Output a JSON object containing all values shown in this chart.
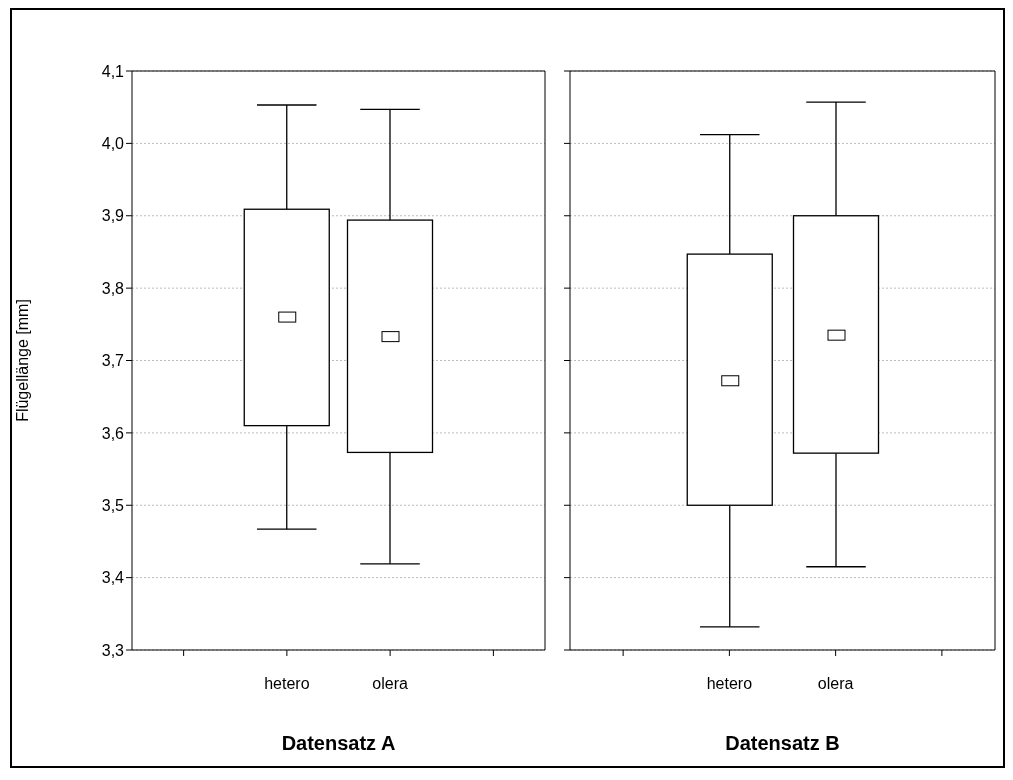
{
  "chart_data": [
    {
      "type": "box",
      "xlabel": "Datensatz A",
      "ylabel": "Flügellänge [mm]",
      "categories": [
        "hetero",
        "olera"
      ],
      "boxes": [
        {
          "low": 3.467,
          "q1": 3.61,
          "median": 3.76,
          "q3": 3.909,
          "high": 4.053
        },
        {
          "low": 3.419,
          "q1": 3.573,
          "median": 3.733,
          "q3": 3.894,
          "high": 4.047
        }
      ],
      "ylim": [
        3.3,
        4.1
      ],
      "yticks": [
        {
          "value": 3.3,
          "label": "3,3"
        },
        {
          "value": 3.4,
          "label": "3,4"
        },
        {
          "value": 3.5,
          "label": "3,5"
        },
        {
          "value": 3.6,
          "label": "3,6"
        },
        {
          "value": 3.7,
          "label": "3,7"
        },
        {
          "value": 3.8,
          "label": "3,8"
        },
        {
          "value": 3.9,
          "label": "3,9"
        },
        {
          "value": 4.0,
          "label": "4,0"
        },
        {
          "value": 4.1,
          "label": "4,1"
        }
      ],
      "grid": "y"
    },
    {
      "type": "box",
      "xlabel": "Datensatz B",
      "categories": [
        "hetero",
        "olera"
      ],
      "boxes": [
        {
          "low": 3.332,
          "q1": 3.5,
          "median": 3.672,
          "q3": 3.847,
          "high": 4.012
        },
        {
          "low": 3.415,
          "q1": 3.572,
          "median": 3.735,
          "q3": 3.9,
          "high": 4.057
        }
      ],
      "ylim": [
        3.3,
        4.1
      ],
      "yticks": [
        3.3,
        3.4,
        3.5,
        3.6,
        3.7,
        3.8,
        3.9,
        4.0,
        4.1
      ],
      "grid": "y",
      "tick_labels": "x"
    }
  ]
}
